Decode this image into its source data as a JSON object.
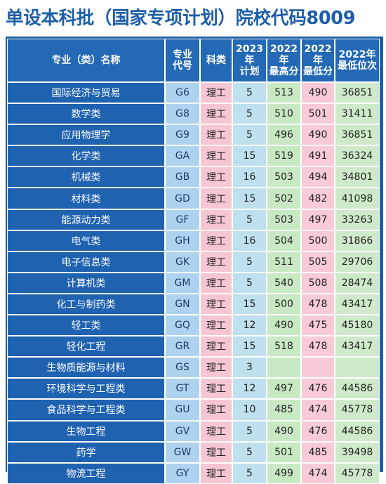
{
  "title": "单设本科批（国家专项计划）院校代码8009",
  "headers": {
    "name": "专业（类）名称",
    "code_line1": "专业",
    "code_line2": "代号",
    "subject": "科类",
    "plan_line1": "2023年",
    "plan_line2": "计划",
    "high_line1": "2022年",
    "high_line2": "最高分",
    "low_line1": "2022年",
    "low_line2": "最低分",
    "rank_line1": "2022年",
    "rank_line2": "最低位次"
  },
  "rows": [
    {
      "name": "国际经济与贸易",
      "code": "G6",
      "subject": "理工",
      "plan": "5",
      "high": "513",
      "low": "490",
      "rank": "36851"
    },
    {
      "name": "数学类",
      "code": "G8",
      "subject": "理工",
      "plan": "5",
      "high": "510",
      "low": "501",
      "rank": "31411"
    },
    {
      "name": "应用物理学",
      "code": "G9",
      "subject": "理工",
      "plan": "5",
      "high": "496",
      "low": "490",
      "rank": "36851"
    },
    {
      "name": "化学类",
      "code": "GA",
      "subject": "理工",
      "plan": "15",
      "high": "519",
      "low": "491",
      "rank": "36324"
    },
    {
      "name": "机械类",
      "code": "GB",
      "subject": "理工",
      "plan": "16",
      "high": "503",
      "low": "494",
      "rank": "34801"
    },
    {
      "name": "材料类",
      "code": "GD",
      "subject": "理工",
      "plan": "15",
      "high": "502",
      "low": "482",
      "rank": "41098"
    },
    {
      "name": "能源动力类",
      "code": "GF",
      "subject": "理工",
      "plan": "5",
      "high": "503",
      "low": "497",
      "rank": "33263"
    },
    {
      "name": "电气类",
      "code": "GH",
      "subject": "理工",
      "plan": "16",
      "high": "504",
      "low": "500",
      "rank": "31866"
    },
    {
      "name": "电子信息类",
      "code": "GK",
      "subject": "理工",
      "plan": "5",
      "high": "511",
      "low": "505",
      "rank": "29706"
    },
    {
      "name": "计算机类",
      "code": "GM",
      "subject": "理工",
      "plan": "5",
      "high": "540",
      "low": "508",
      "rank": "28474"
    },
    {
      "name": "化工与制药类",
      "code": "GN",
      "subject": "理工",
      "plan": "15",
      "high": "500",
      "low": "478",
      "rank": "43417"
    },
    {
      "name": "轻工类",
      "code": "GQ",
      "subject": "理工",
      "plan": "12",
      "high": "490",
      "low": "475",
      "rank": "45180"
    },
    {
      "name": "轻化工程",
      "code": "GR",
      "subject": "理工",
      "plan": "15",
      "high": "518",
      "low": "478",
      "rank": "43417"
    },
    {
      "name": "生物质能源与材料",
      "code": "GS",
      "subject": "理工",
      "plan": "3",
      "high": "",
      "low": "",
      "rank": ""
    },
    {
      "name": "环境科学与工程类",
      "code": "GT",
      "subject": "理工",
      "plan": "12",
      "high": "497",
      "low": "476",
      "rank": "44586"
    },
    {
      "name": "食品科学与工程类",
      "code": "GU",
      "subject": "理工",
      "plan": "10",
      "high": "485",
      "low": "474",
      "rank": "45778"
    },
    {
      "name": "生物工程",
      "code": "GV",
      "subject": "理工",
      "plan": "5",
      "high": "490",
      "low": "476",
      "rank": "44586"
    },
    {
      "name": "药学",
      "code": "GW",
      "subject": "理工",
      "plan": "5",
      "high": "501",
      "low": "485",
      "rank": "39498"
    },
    {
      "name": "物流工程",
      "code": "GY",
      "subject": "理工",
      "plan": "5",
      "high": "499",
      "low": "474",
      "rank": "45778"
    }
  ]
}
